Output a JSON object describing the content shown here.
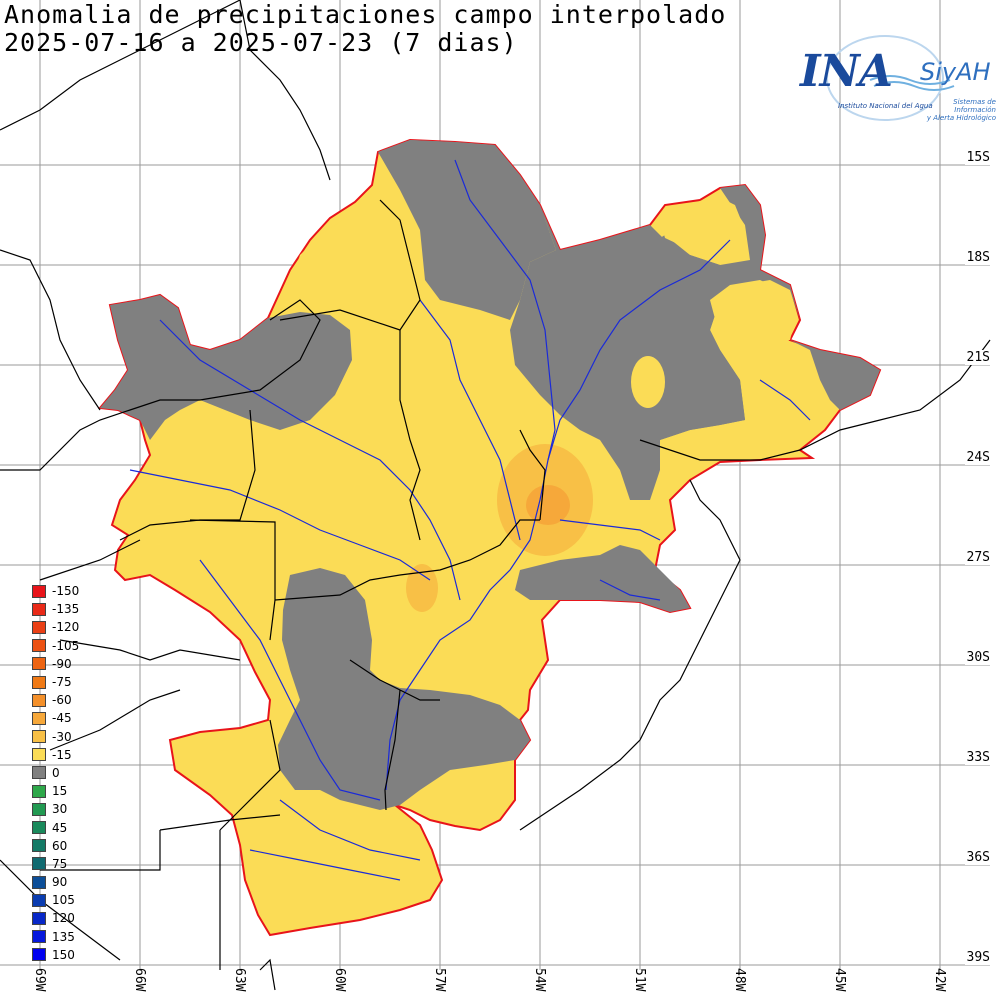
{
  "title": {
    "line1": "Anomalia de precipitaciones campo interpolado",
    "line2": "2025-07-16 a 2025-07-23 (7 dias)"
  },
  "logo": {
    "ina": "INA",
    "siyah": "SiyAH",
    "subtitle_left": "Instituto Nacional del Agua",
    "subtitle_right_1": "Sistemas de Información",
    "subtitle_right_2": "y Alerta Hidrológico"
  },
  "lat_labels": [
    "15S",
    "18S",
    "21S",
    "24S",
    "27S",
    "30S",
    "33S",
    "36S",
    "39S"
  ],
  "lon_labels": [
    "69W",
    "66W",
    "63W",
    "60W",
    "57W",
    "54W",
    "51W",
    "48W",
    "45W",
    "42W"
  ],
  "legend": [
    {
      "value": "-150",
      "color": "#e8141a"
    },
    {
      "value": "-135",
      "color": "#e92a18"
    },
    {
      "value": "-120",
      "color": "#ea4016"
    },
    {
      "value": "-105",
      "color": "#ec5214"
    },
    {
      "value": "-90",
      "color": "#ee6412"
    },
    {
      "value": "-75",
      "color": "#f07a16"
    },
    {
      "value": "-60",
      "color": "#f4902a"
    },
    {
      "value": "-45",
      "color": "#f6a83a"
    },
    {
      "value": "-30",
      "color": "#f8c046"
    },
    {
      "value": "-15",
      "color": "#fbdc56"
    },
    {
      "value": "0",
      "color": "#808080"
    },
    {
      "value": "15",
      "color": "#2ea84a"
    },
    {
      "value": "30",
      "color": "#229a52"
    },
    {
      "value": "45",
      "color": "#1a8a5c"
    },
    {
      "value": "60",
      "color": "#147a66"
    },
    {
      "value": "75",
      "color": "#106a70"
    },
    {
      "value": "90",
      "color": "#0c4e98"
    },
    {
      "value": "105",
      "color": "#0a3cb0"
    },
    {
      "value": "120",
      "color": "#0828c8"
    },
    {
      "value": "135",
      "color": "#0618dc"
    },
    {
      "value": "150",
      "color": "#0000f0"
    }
  ],
  "colors": {
    "anomaly_neg15": "#fbdc56",
    "anomaly_neg30": "#f8c046",
    "anomaly_neg45": "#f6a83a",
    "anomaly_zero": "#808080",
    "basin_outline": "#e8141a",
    "rivers": "#1a2ad8",
    "borders": "#000000",
    "grid": "#9a9a9a"
  }
}
